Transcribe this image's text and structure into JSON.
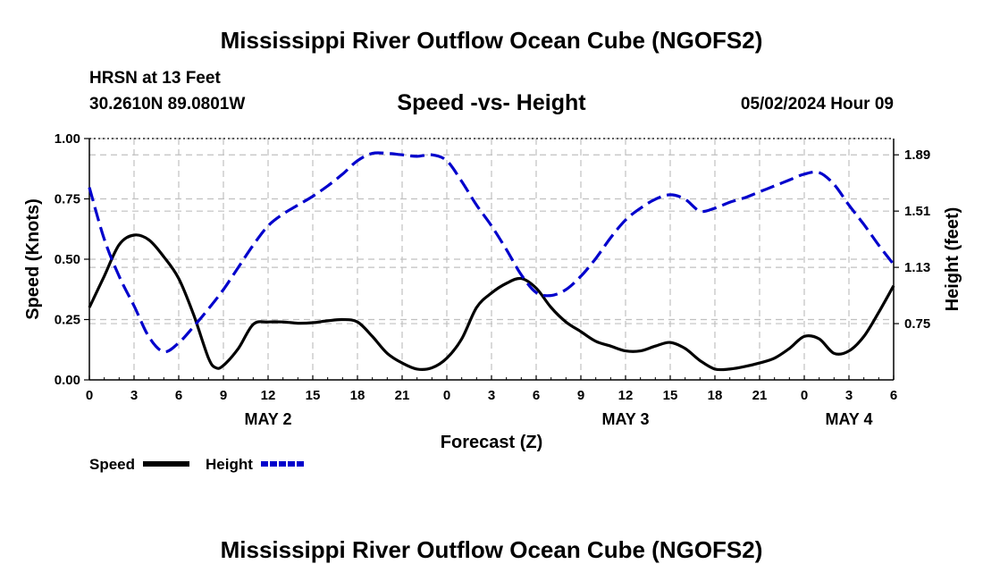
{
  "header": {
    "title": "Mississippi River Outflow Ocean Cube (NGOFS2)",
    "station": "HRSN at 13 Feet",
    "coords": "30.2610N  89.0801W",
    "subtitle": "Speed -vs- Height",
    "datetime": "05/02/2024 Hour 09"
  },
  "footer": {
    "title": "Mississippi River Outflow Ocean Cube (NGOFS2)"
  },
  "colors": {
    "speed": "#000000",
    "height": "#0000cc",
    "grid": "#c0c0c0"
  },
  "chart_data": {
    "type": "line",
    "xlabel": "Forecast (Z)",
    "ylabel": "Speed (Knots)",
    "y2label": "Height (feet)",
    "xlim": [
      0,
      54
    ],
    "ylim": [
      0,
      1
    ],
    "y2lim": [
      0.37,
      2.0
    ],
    "x_ticks": [
      0,
      3,
      6,
      9,
      12,
      15,
      18,
      21,
      24,
      27,
      30,
      33,
      36,
      39,
      42,
      45,
      48,
      51,
      54
    ],
    "x_tick_labels": [
      "0",
      "3",
      "6",
      "9",
      "12",
      "15",
      "18",
      "21",
      "0",
      "3",
      "6",
      "9",
      "12",
      "15",
      "18",
      "21",
      "0",
      "3",
      "6"
    ],
    "y_ticks": [
      0,
      0.25,
      0.5,
      0.75,
      1.0
    ],
    "y_tick_labels": [
      "0.00",
      "0.25",
      "0.50",
      "0.75",
      "1.00"
    ],
    "y2_ticks": [
      0.75,
      1.13,
      1.51,
      1.89
    ],
    "y2_tick_labels": [
      "0.75",
      "1.13",
      "1.51",
      "1.89"
    ],
    "day_labels": [
      {
        "x": 12,
        "label": "MAY 2"
      },
      {
        "x": 36,
        "label": "MAY 3"
      },
      {
        "x": 51,
        "label": "MAY 4"
      }
    ],
    "legend": [
      "Speed",
      "Height"
    ],
    "series": [
      {
        "name": "Speed",
        "axis": "left",
        "x": [
          0,
          1,
          2,
          3,
          4,
          5,
          6,
          7,
          8,
          8.5,
          9,
          10,
          11,
          12,
          13,
          14,
          15,
          16,
          17,
          18,
          19,
          20,
          21,
          22,
          23,
          24,
          25,
          26,
          27,
          28,
          29,
          30,
          31,
          32,
          33,
          34,
          35,
          36,
          37,
          38,
          39,
          40,
          41,
          42,
          43,
          44,
          45,
          46,
          47,
          48,
          49,
          50,
          51,
          52,
          53,
          54
        ],
        "values": [
          0.3,
          0.43,
          0.56,
          0.6,
          0.58,
          0.51,
          0.42,
          0.27,
          0.09,
          0.05,
          0.06,
          0.13,
          0.23,
          0.24,
          0.24,
          0.235,
          0.237,
          0.245,
          0.25,
          0.24,
          0.18,
          0.11,
          0.07,
          0.045,
          0.05,
          0.09,
          0.17,
          0.3,
          0.36,
          0.4,
          0.42,
          0.38,
          0.3,
          0.24,
          0.2,
          0.16,
          0.14,
          0.12,
          0.12,
          0.14,
          0.155,
          0.13,
          0.08,
          0.045,
          0.045,
          0.055,
          0.07,
          0.09,
          0.13,
          0.18,
          0.17,
          0.11,
          0.12,
          0.18,
          0.28,
          0.39
        ]
      },
      {
        "name": "Height",
        "axis": "right",
        "x": [
          0,
          1,
          2,
          3,
          4,
          5,
          6,
          7,
          8,
          9,
          10,
          11,
          12,
          13,
          14,
          15,
          16,
          17,
          18,
          19,
          20,
          21,
          22,
          23,
          24,
          25,
          26,
          27,
          28,
          29,
          30,
          31,
          32,
          33,
          34,
          35,
          36,
          37,
          38,
          39,
          40,
          41,
          42,
          43,
          44,
          45,
          46,
          47,
          48,
          49,
          50,
          51,
          52,
          53,
          54
        ],
        "values": [
          1.67,
          1.32,
          1.07,
          0.87,
          0.66,
          0.56,
          0.62,
          0.73,
          0.85,
          0.98,
          1.13,
          1.28,
          1.41,
          1.49,
          1.55,
          1.61,
          1.68,
          1.76,
          1.85,
          1.9,
          1.9,
          1.89,
          1.88,
          1.89,
          1.85,
          1.71,
          1.55,
          1.41,
          1.25,
          1.08,
          0.96,
          0.94,
          0.98,
          1.07,
          1.19,
          1.33,
          1.45,
          1.53,
          1.59,
          1.62,
          1.59,
          1.51,
          1.53,
          1.57,
          1.6,
          1.64,
          1.68,
          1.72,
          1.76,
          1.77,
          1.69,
          1.55,
          1.42,
          1.28,
          1.15
        ]
      }
    ]
  }
}
